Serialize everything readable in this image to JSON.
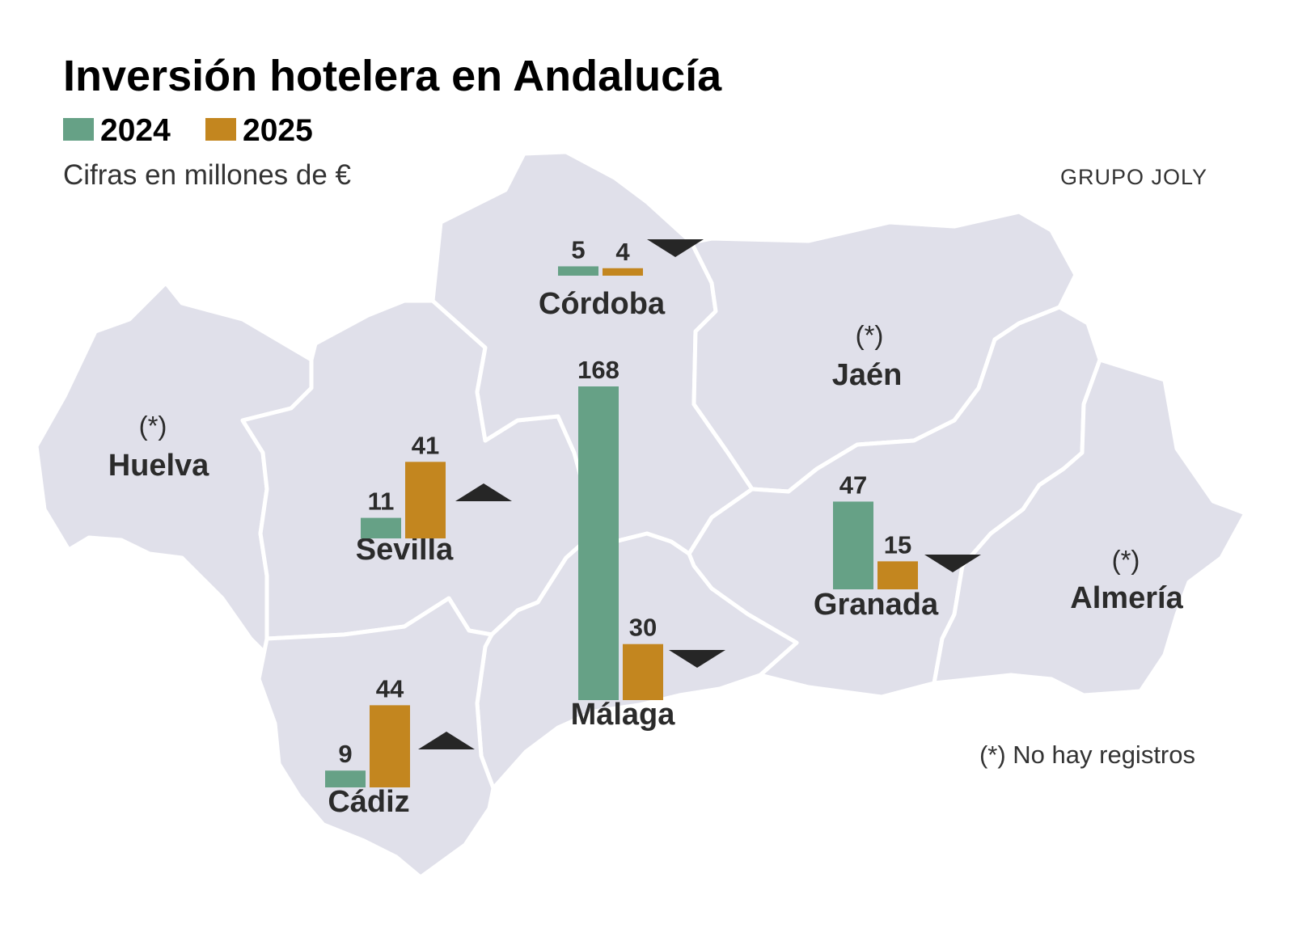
{
  "title": "Inversión hotelera en Andalucía",
  "subtitle": "Cifras en millones de €",
  "credit": "GRUPO JOLY",
  "note": "(*) No hay registros",
  "legend": [
    {
      "label": "2024",
      "color": "#66a186"
    },
    {
      "label": "2025",
      "color": "#c3861f"
    }
  ],
  "colors": {
    "land": "#e0e0ea",
    "border": "#ffffff",
    "bar_2024": "#66a186",
    "bar_2025": "#c3861f",
    "trend": "#262626"
  },
  "chart_data": {
    "type": "bar",
    "series": [
      {
        "name": "2024"
      },
      {
        "name": "2025"
      }
    ],
    "provinces": [
      {
        "name": "Huelva",
        "no_data": true,
        "marker": "(*)"
      },
      {
        "name": "Sevilla",
        "values": [
          11,
          41
        ],
        "labels": [
          "11",
          "41"
        ],
        "trend": "up"
      },
      {
        "name": "Córdoba",
        "values": [
          5,
          4
        ],
        "labels": [
          "5",
          "4"
        ],
        "trend": "down"
      },
      {
        "name": "Jaén",
        "no_data": true,
        "marker": "(*)"
      },
      {
        "name": "Granada",
        "values": [
          47,
          15
        ],
        "labels": [
          "47",
          "15"
        ],
        "trend": "down"
      },
      {
        "name": "Almería",
        "no_data": true,
        "marker": "(*)"
      },
      {
        "name": "Málaga",
        "values": [
          168,
          30
        ],
        "labels": [
          "168",
          "30"
        ],
        "trend": "down"
      },
      {
        "name": "Cádiz",
        "values": [
          9,
          44
        ],
        "labels": [
          "9",
          "44"
        ],
        "trend": "up"
      }
    ]
  }
}
